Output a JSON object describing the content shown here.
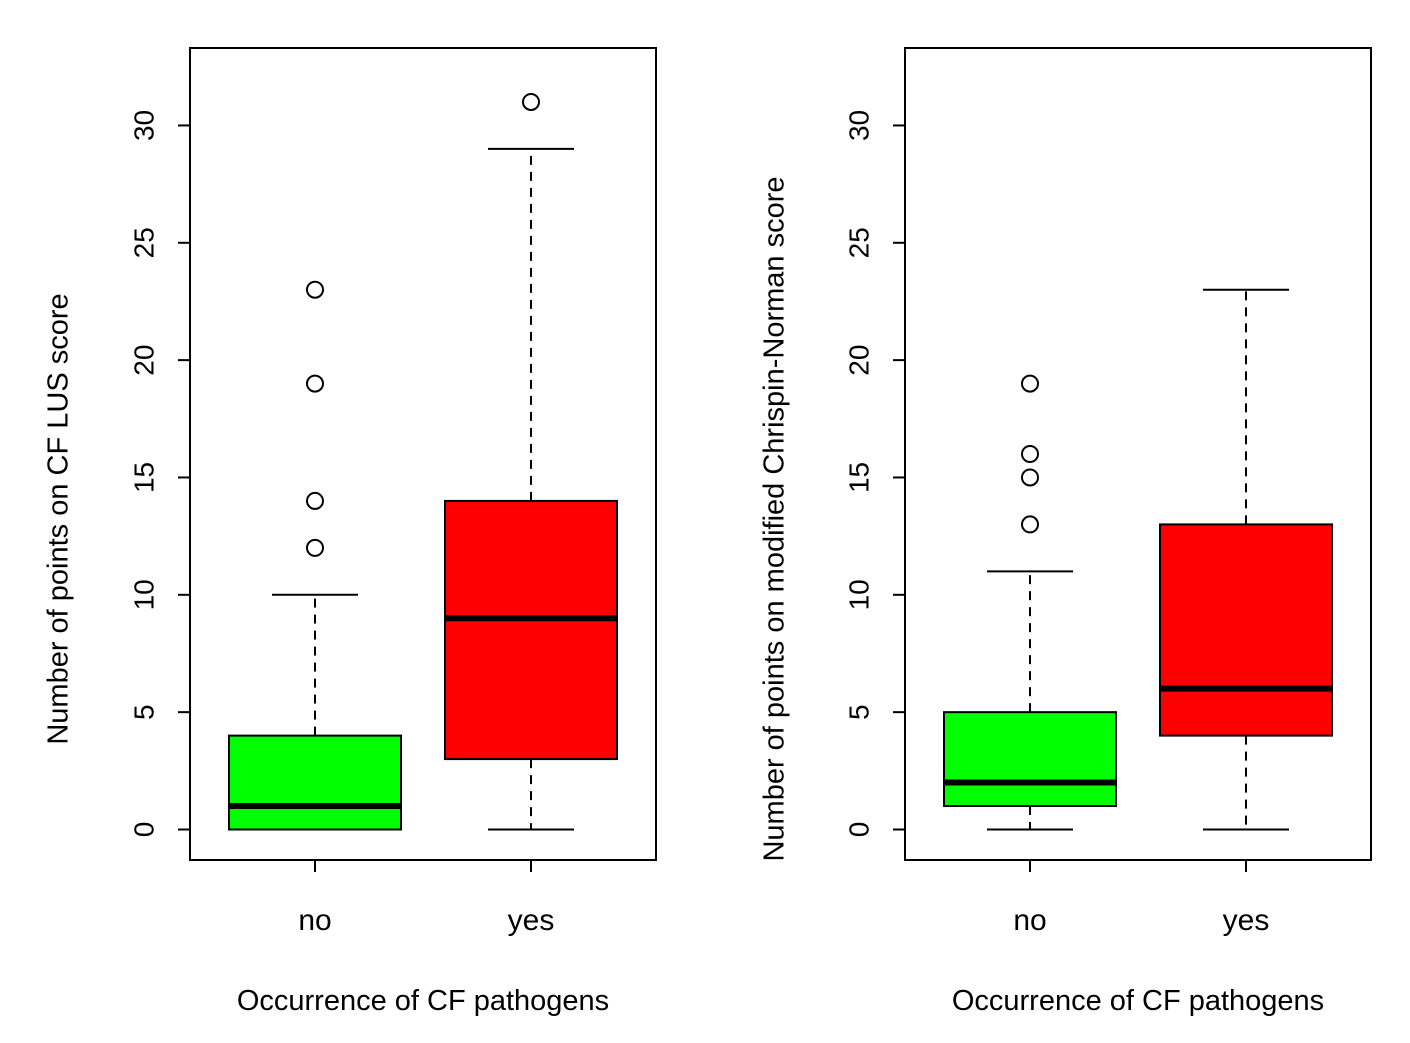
{
  "chart_data": [
    {
      "type": "boxplot",
      "title": "",
      "xlabel": "Occurrence of CF pathogens",
      "ylabel": "Number of points on CF LUS score",
      "ylim": [
        -1.3,
        33.3
      ],
      "yticks": [
        0,
        5,
        10,
        15,
        20,
        25,
        30
      ],
      "categories": [
        "no",
        "yes"
      ],
      "boxes": [
        {
          "category": "no",
          "color": "#00ff00",
          "whisker_low": 0,
          "q1": 0,
          "median": 1,
          "q3": 4,
          "whisker_high": 10,
          "outliers": [
            12,
            14,
            19,
            23
          ]
        },
        {
          "category": "yes",
          "color": "#ff0000",
          "whisker_low": 0,
          "q1": 3,
          "median": 9,
          "q3": 14,
          "whisker_high": 29,
          "outliers": [
            31
          ]
        }
      ]
    },
    {
      "type": "boxplot",
      "title": "",
      "xlabel": "Occurrence of CF pathogens",
      "ylabel": "Number of points on modified Chrispin-Norman score",
      "ylim": [
        -1.3,
        33.3
      ],
      "yticks": [
        0,
        5,
        10,
        15,
        20,
        25,
        30
      ],
      "categories": [
        "no",
        "yes"
      ],
      "boxes": [
        {
          "category": "no",
          "color": "#00ff00",
          "whisker_low": 0,
          "q1": 1,
          "median": 2,
          "q3": 5,
          "whisker_high": 11,
          "outliers": [
            13,
            15,
            16,
            19
          ]
        },
        {
          "category": "yes",
          "color": "#ff0000",
          "whisker_low": 0,
          "q1": 4,
          "median": 6,
          "q3": 13,
          "whisker_high": 23,
          "outliers": []
        }
      ]
    }
  ]
}
